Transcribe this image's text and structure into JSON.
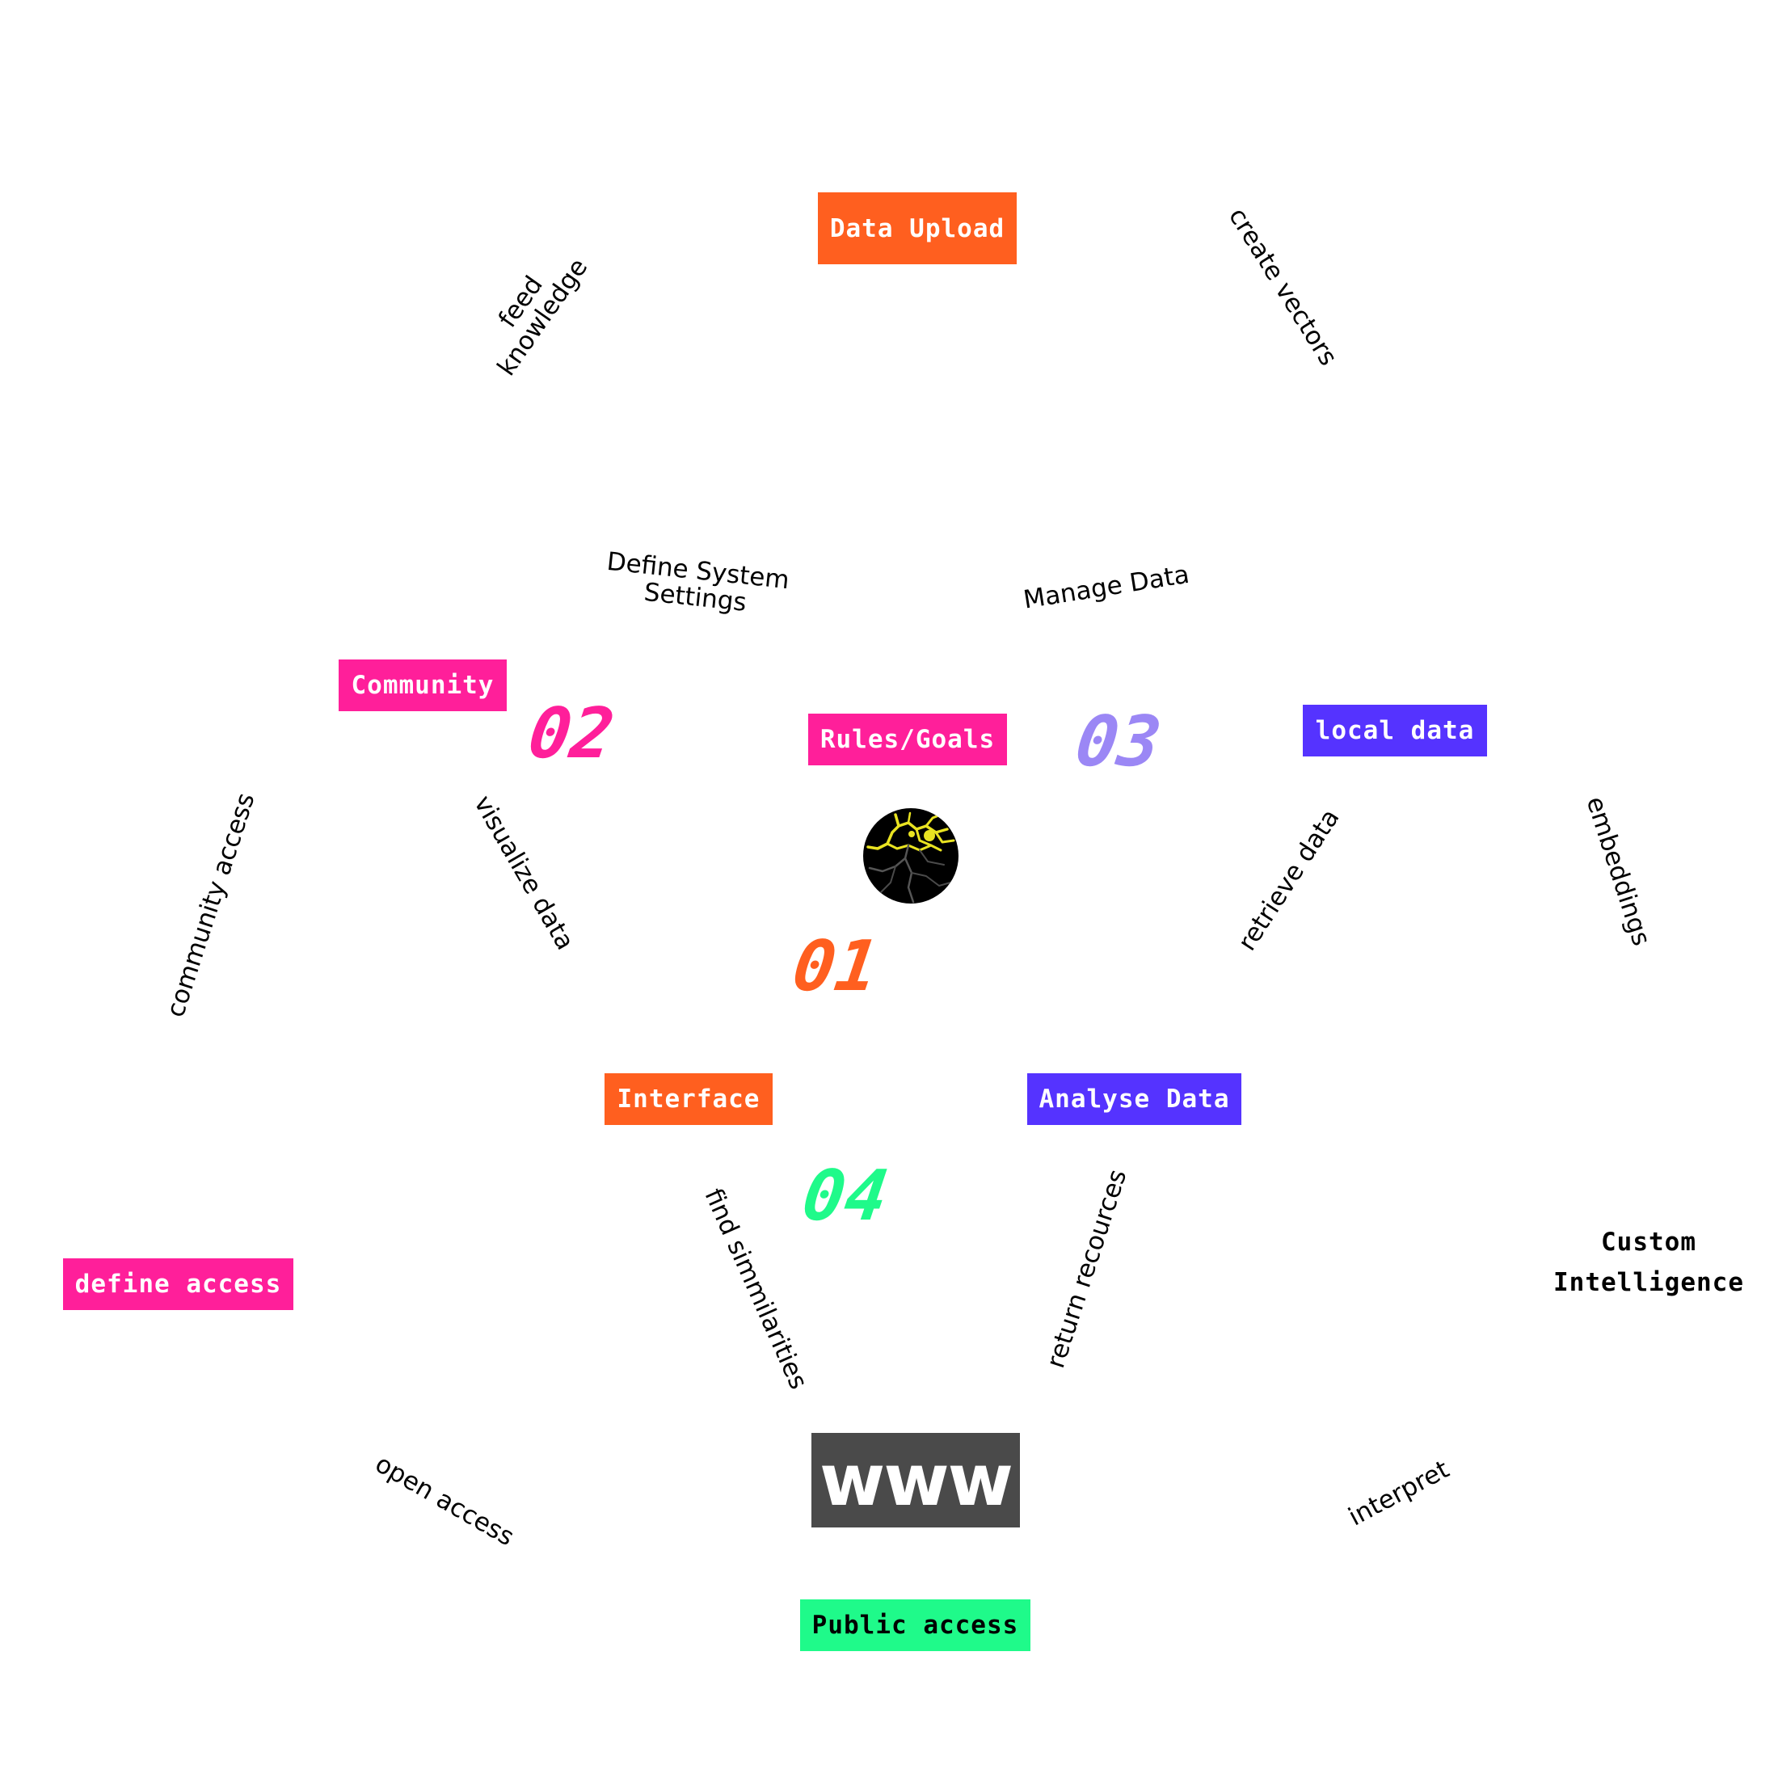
{
  "colors": {
    "orange": "#ff5f1f",
    "pink": "#ff1f9a",
    "purple": "#5533ff",
    "lavender": "#9b87f5",
    "green": "#1ffa8a",
    "dark": "#4a4a4a"
  },
  "boxes": {
    "data_upload": "Data Upload",
    "community": "Community",
    "rules_goals": "Rules/Goals",
    "local_data": "local data",
    "interface": "Interface",
    "analyse_data": "Analyse Data",
    "define_access": "define access",
    "public_access": "Public access",
    "www": "www"
  },
  "numbers": {
    "n01": "01",
    "n02": "02",
    "n03": "03",
    "n04": "04"
  },
  "labels": {
    "feed_knowledge": [
      "feed",
      "knowledge"
    ],
    "create_vectors": "create vectors",
    "define_system_settings": [
      "Define System",
      "Settings"
    ],
    "manage_data": "Manage Data",
    "community_access": "community access",
    "visualize_data": "visualize data",
    "retrieve_data": "retrieve data",
    "embeddings": "embeddings",
    "find_simmilarities": "find simmilarities",
    "return_recources": "return recources",
    "open_access": "open access",
    "interpret": "interpret"
  },
  "custom_intelligence": [
    "Custom",
    "Intelligence"
  ],
  "icons": {
    "globe": "globe-icon"
  }
}
